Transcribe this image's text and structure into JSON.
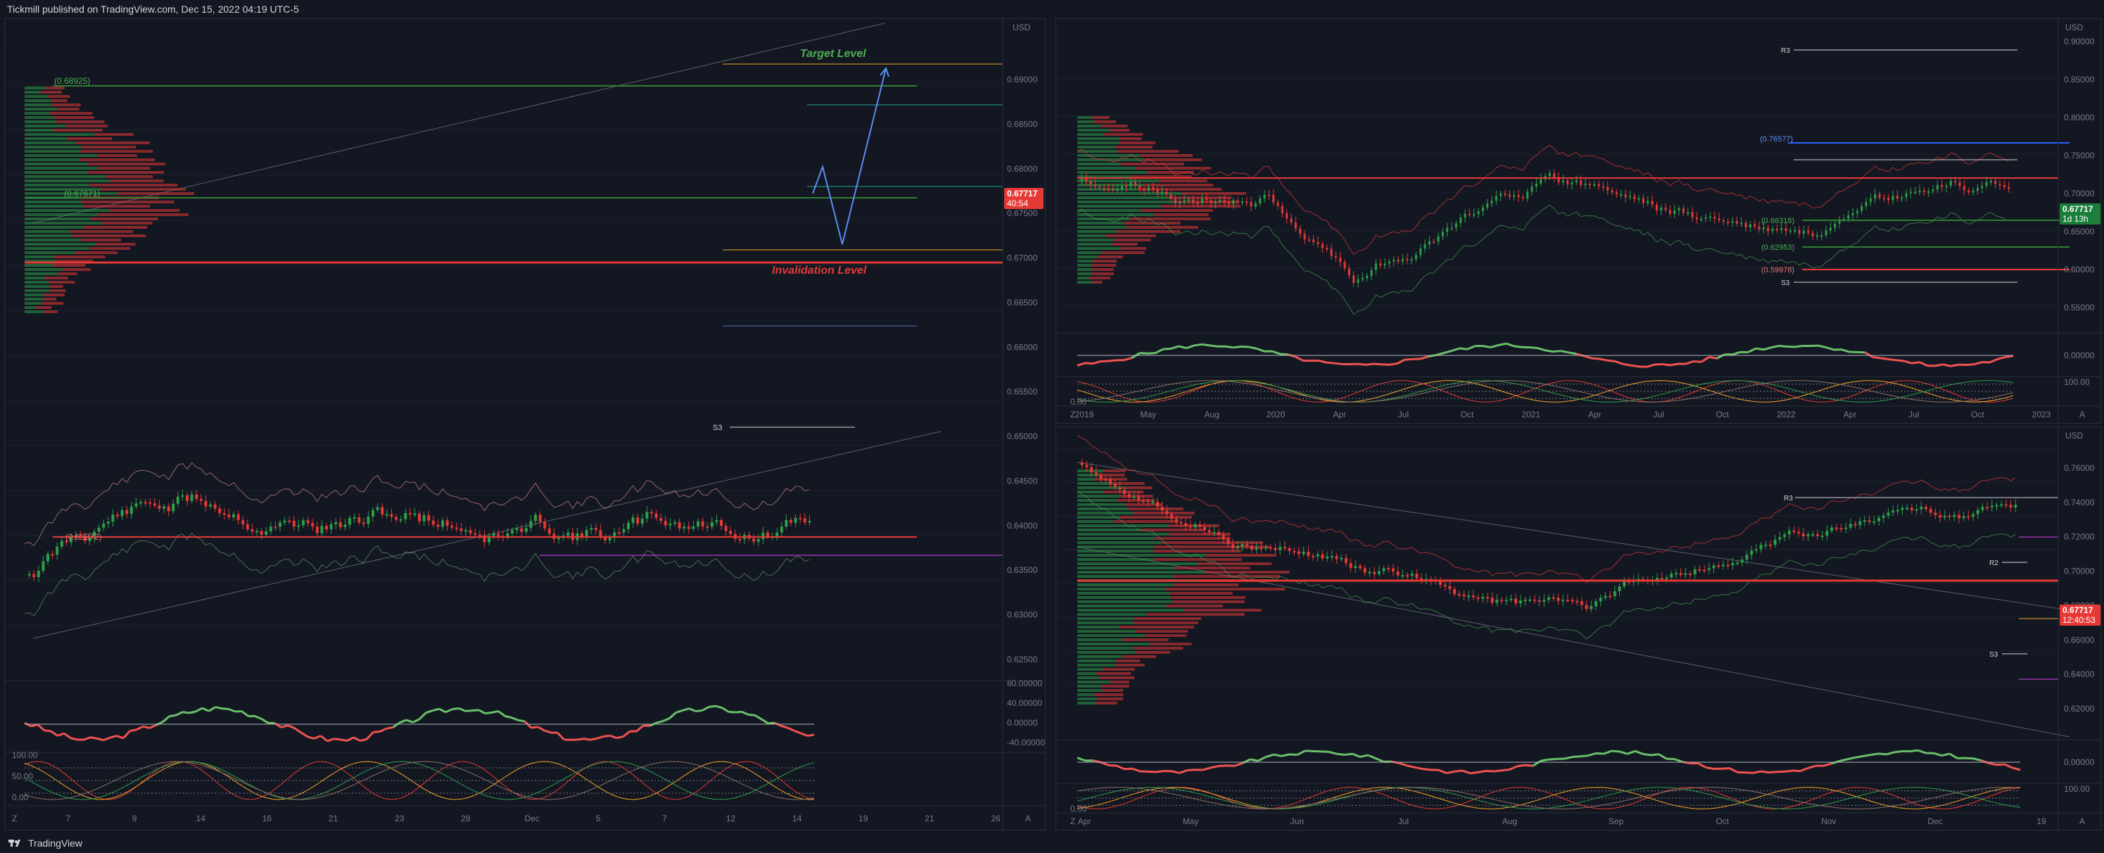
{
  "header": {
    "published": "Tickmill published on TradingView.com, Dec 15, 2022 04:19 UTC-5"
  },
  "footer": {
    "brand": "TradingView"
  },
  "colors": {
    "bg": "#131722",
    "up": "#2e9e49",
    "down": "#e53935",
    "grid": "#1e222d",
    "accent_green": "#3fa34d",
    "accent_red": "#e53935",
    "blue": "#5b8def",
    "orange": "#f5a623",
    "magenta": "#d946ef"
  },
  "left_chart": {
    "currency": "USD",
    "price_axis": [
      "0.69000",
      "0.68500",
      "0.68000",
      "0.67500",
      "0.67000",
      "0.66500",
      "0.66000",
      "0.65500",
      "0.65000",
      "0.64500",
      "0.64000",
      "0.63500",
      "0.63000",
      "0.62500"
    ],
    "time_axis": [
      "7",
      "9",
      "14",
      "16",
      "21",
      "23",
      "28",
      "Dec",
      "5",
      "7",
      "12",
      "14",
      "19",
      "21",
      "26"
    ],
    "annotations": {
      "target": "Target Level",
      "invalidation": "Invalidation Level",
      "s3": "S3"
    },
    "level_labels": [
      "(0.68925)",
      "(0.67671)",
      "(0.63872)"
    ],
    "price_badge": {
      "value": "0.67717",
      "time": "40:54"
    },
    "osc1_axis": [
      "80.00000",
      "40.00000",
      "0.00000",
      "-40.00000"
    ],
    "osc2_axis": [
      "100.00",
      "50.00",
      "0.00"
    ]
  },
  "right_top_chart": {
    "currency": "USD",
    "price_axis": [
      "0.90000",
      "0.85000",
      "0.80000",
      "0.75000",
      "0.70000",
      "0.65000",
      "0.60000",
      "0.55000"
    ],
    "time_axis": [
      "2019",
      "May",
      "Aug",
      "2020",
      "Apr",
      "Jul",
      "Oct",
      "2021",
      "Apr",
      "Jul",
      "Oct",
      "2022",
      "Apr",
      "Jul",
      "Oct",
      "2023"
    ],
    "level_labels": [
      "(0.76577)",
      "(0.66318)",
      "(0.62953)",
      "(0.59978)"
    ],
    "pivots": {
      "r3": "R3",
      "s3": "S3"
    },
    "price_badge": {
      "value": "0.67717",
      "time": "1d 13h"
    },
    "osc1_axis": [
      "0.00000"
    ],
    "osc2_axis": [
      "100.00",
      "0.00"
    ]
  },
  "right_bottom_chart": {
    "currency": "USD",
    "price_axis": [
      "0.76000",
      "0.74000",
      "0.72000",
      "0.70000",
      "0.68000",
      "0.66000",
      "0.64000",
      "0.62000"
    ],
    "time_axis": [
      "Apr",
      "May",
      "Jun",
      "Jul",
      "Aug",
      "Sep",
      "Oct",
      "Nov",
      "Dec",
      "19"
    ],
    "pivots": {
      "r3": "R3",
      "r2": "R2",
      "s3": "S3"
    },
    "price_badge": {
      "value": "0.67717",
      "time": "12:40:53"
    },
    "osc1_axis": [
      "0.00000"
    ],
    "osc2_axis": [
      "100.00",
      "0.00"
    ]
  },
  "footer_buttons": {
    "z": "Z",
    "a": "A"
  }
}
